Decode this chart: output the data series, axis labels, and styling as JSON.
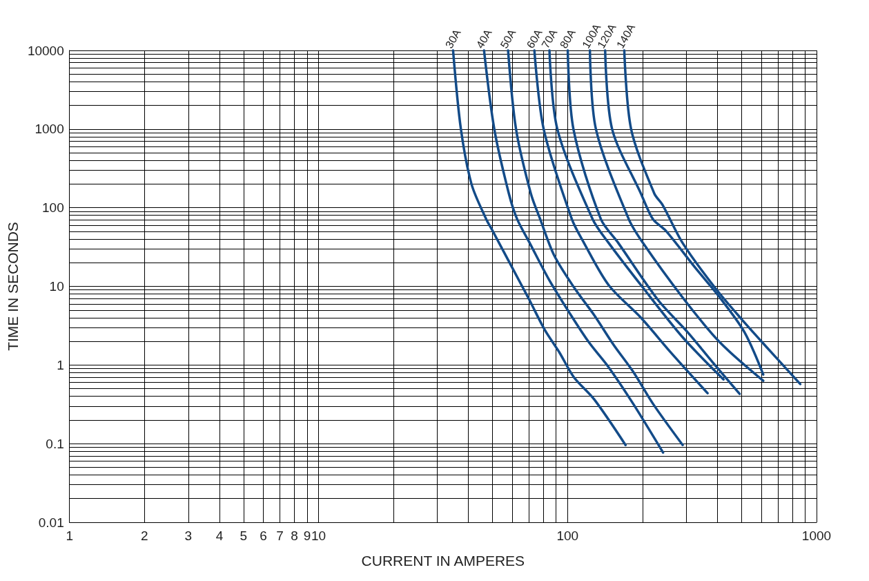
{
  "chart_data": {
    "type": "line",
    "xlabel": "CURRENT IN AMPERES",
    "ylabel": "TIME IN SECONDS",
    "log": "xy",
    "grid": true,
    "legend": false,
    "marker": "none",
    "line_style": "solid",
    "xlim": [
      1,
      1000
    ],
    "ylim": [
      0.01,
      10000
    ],
    "xticks": [
      1,
      2,
      3,
      4,
      5,
      6,
      7,
      8,
      9,
      10,
      {
        "value": 20,
        "label": null
      },
      {
        "value": 30,
        "label": null
      },
      {
        "value": 40,
        "label": null
      },
      {
        "value": 50,
        "label": null
      },
      {
        "value": 60,
        "label": null
      },
      {
        "value": 70,
        "label": null
      },
      {
        "value": 80,
        "label": null
      },
      {
        "value": 90,
        "label": null
      },
      100,
      {
        "value": 200,
        "label": null
      },
      {
        "value": 300,
        "label": null
      },
      {
        "value": 400,
        "label": null
      },
      {
        "value": 500,
        "label": null
      },
      {
        "value": 600,
        "label": null
      },
      {
        "value": 700,
        "label": null
      },
      {
        "value": 800,
        "label": null
      },
      {
        "value": 900,
        "label": null
      },
      1000
    ],
    "yticks": [
      0.01,
      {
        "value": 0.02,
        "label": null
      },
      {
        "value": 0.03,
        "label": null
      },
      {
        "value": 0.04,
        "label": null
      },
      {
        "value": 0.05,
        "label": null
      },
      {
        "value": 0.06,
        "label": null
      },
      {
        "value": 0.07,
        "label": null
      },
      {
        "value": 0.08,
        "label": null
      },
      {
        "value": 0.09,
        "label": null
      },
      0.1,
      {
        "value": 0.2,
        "label": null
      },
      {
        "value": 0.3,
        "label": null
      },
      {
        "value": 0.4,
        "label": null
      },
      {
        "value": 0.5,
        "label": null
      },
      {
        "value": 0.6,
        "label": null
      },
      {
        "value": 0.7,
        "label": null
      },
      {
        "value": 0.8,
        "label": null
      },
      {
        "value": 0.9,
        "label": null
      },
      1,
      {
        "value": 2,
        "label": null
      },
      {
        "value": 3,
        "label": null
      },
      {
        "value": 4,
        "label": null
      },
      {
        "value": 5,
        "label": null
      },
      {
        "value": 6,
        "label": null
      },
      {
        "value": 7,
        "label": null
      },
      {
        "value": 8,
        "label": null
      },
      {
        "value": 9,
        "label": null
      },
      10,
      {
        "value": 20,
        "label": null
      },
      {
        "value": 30,
        "label": null
      },
      {
        "value": 40,
        "label": null
      },
      {
        "value": 50,
        "label": null
      },
      {
        "value": 60,
        "label": null
      },
      {
        "value": 70,
        "label": null
      },
      {
        "value": 80,
        "label": null
      },
      {
        "value": 90,
        "label": null
      },
      100,
      {
        "value": 200,
        "label": null
      },
      {
        "value": 300,
        "label": null
      },
      {
        "value": 400,
        "label": null
      },
      {
        "value": 500,
        "label": null
      },
      {
        "value": 600,
        "label": null
      },
      {
        "value": 700,
        "label": null
      },
      {
        "value": 800,
        "label": null
      },
      {
        "value": 900,
        "label": null
      },
      1000,
      {
        "value": 2000,
        "label": null
      },
      {
        "value": 3000,
        "label": null
      },
      {
        "value": 4000,
        "label": null
      },
      {
        "value": 5000,
        "label": null
      },
      {
        "value": 6000,
        "label": null
      },
      {
        "value": 7000,
        "label": null
      },
      {
        "value": 8000,
        "label": null
      },
      {
        "value": 9000,
        "label": null
      },
      10000
    ],
    "series": [
      {
        "name": "30A",
        "color": "#134b88",
        "x": [
          34.7,
          37.3,
          41.2,
          47.1,
          50,
          60,
          70.3,
          80.9,
          92.7,
          106,
          128,
          171
        ],
        "values": [
          10000,
          1000,
          197,
          72,
          51,
          17.2,
          6.7,
          2.82,
          1.45,
          0.7,
          0.365,
          0.096
        ]
      },
      {
        "name": "40A",
        "color": "#134b88",
        "x": [
          46.2,
          50.8,
          58.1,
          62.7,
          70.5,
          84.6,
          101.6,
          121.9,
          146,
          184,
          242
        ],
        "values": [
          10000,
          1000,
          152,
          72,
          35.5,
          11.9,
          4.65,
          1.94,
          0.944,
          0.317,
          0.077
        ]
      },
      {
        "name": "50A",
        "color": "#134b88",
        "x": [
          57.7,
          62.1,
          71.2,
          77.6,
          88.4,
          106.4,
          128,
          153,
          184,
          221,
          290
        ],
        "values": [
          10000,
          1000,
          152,
          72,
          24.7,
          9.6,
          4.3,
          1.81,
          0.81,
          0.317,
          0.096
        ]
      },
      {
        "name": "60A",
        "color": "#134b88",
        "x": [
          73.6,
          80.2,
          104,
          116.5,
          146.5,
          197,
          259,
          365
        ],
        "values": [
          10000,
          1000,
          72,
          35.5,
          10.3,
          4,
          1.46,
          0.438
        ]
      },
      {
        "name": "70A",
        "color": "#134b88",
        "x": [
          84.6,
          91,
          126,
          146.4,
          201,
          290,
          423
        ],
        "values": [
          10000,
          1000,
          72,
          35.5,
          9.6,
          2.25,
          0.656
        ]
      },
      {
        "name": "80A",
        "color": "#134b88",
        "x": [
          100.2,
          105.6,
          136,
          160,
          231,
          304,
          382,
          491
        ],
        "values": [
          10000,
          1000,
          72,
          35.5,
          6.7,
          2.6,
          1.09,
          0.43
        ]
      },
      {
        "name": "100A",
        "color": "#134b88",
        "x": [
          123,
          130,
          176,
          201,
          290,
          409,
          611
        ],
        "values": [
          10000,
          1000,
          72,
          35.5,
          7.2,
          1.94,
          0.63
        ]
      },
      {
        "name": "120A",
        "color": "#134b88",
        "x": [
          141.6,
          151,
          197,
          220,
          248,
          326,
          409,
          514,
          611
        ],
        "values": [
          10000,
          1000,
          152,
          72,
          51,
          17.2,
          7.2,
          2.6,
          0.757
        ]
      },
      {
        "name": "140A",
        "color": "#134b88",
        "x": [
          169,
          180,
          223,
          241,
          290,
          391,
          503,
          632,
          860
        ],
        "values": [
          10000,
          1000,
          152,
          108,
          35.5,
          9.6,
          3.74,
          1.67,
          0.573
        ]
      }
    ]
  }
}
